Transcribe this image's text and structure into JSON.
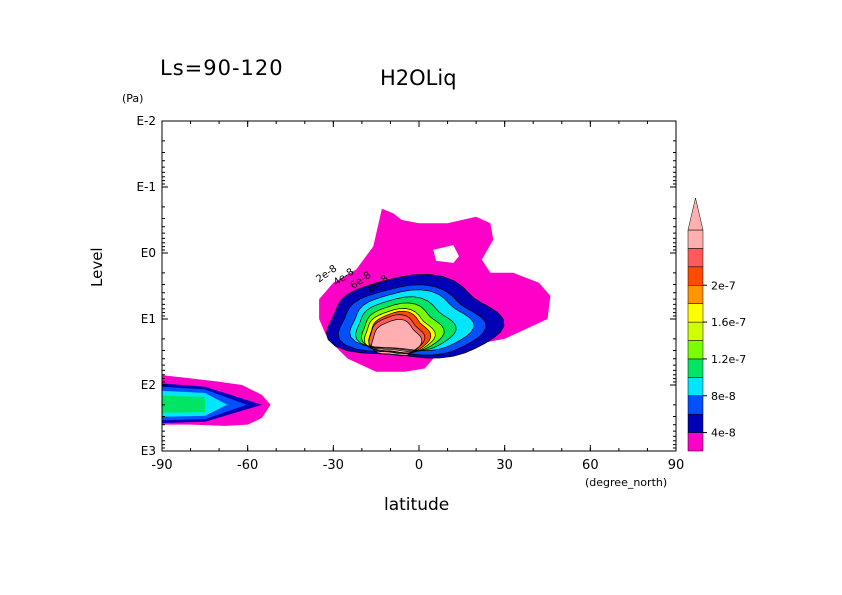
{
  "chart_data": {
    "type": "contour",
    "title": "H2OLiq",
    "subtitle": "Ls=90-120",
    "xlabel": "latitude",
    "x_unit": "(degree_north)",
    "ylabel": "Level",
    "y_unit": "(Pa)",
    "x_ticks": [
      "-90",
      "-60",
      "-30",
      "0",
      "30",
      "60",
      "90"
    ],
    "x_range": [
      -90,
      90
    ],
    "y_ticks": [
      "E-2",
      "E-1",
      "E0",
      "E1",
      "E2",
      "E3"
    ],
    "y_range_log10": [
      -2,
      3
    ],
    "y_scale": "log",
    "y_direction": "pressure increases downward",
    "colorbar": {
      "labels": [
        "4e-8",
        "8e-8",
        "1.2e-7",
        "1.6e-7",
        "2e-7"
      ],
      "levels": [
        2e-08,
        4e-08,
        6e-08,
        8e-08,
        1e-07,
        1.2e-07,
        1.4e-07,
        1.6e-07,
        1.8e-07,
        2e-07,
        2.2e-07
      ],
      "colors": [
        "#ff00c8",
        "#0000b4",
        "#0050ff",
        "#00e6ff",
        "#00e664",
        "#78ff00",
        "#d2ff00",
        "#ffff00",
        "#ff9600",
        "#ff4b00",
        "#ff5a5a",
        "#ffafaf"
      ],
      "extend": "max"
    },
    "contour_labels": [
      "2e-8",
      "4e-8",
      "6e-8",
      "8e-8"
    ],
    "regions": [
      {
        "name": "main cloud",
        "lat_range": [
          -35,
          45
        ],
        "level_log10_range": [
          -0.7,
          1.8
        ],
        "max_value": ">2.2e-7",
        "peak_lat": -8,
        "peak_level_log10": 1.3
      },
      {
        "name": "south polar cloud",
        "lat_range": [
          -90,
          -52
        ],
        "level_log10_range": [
          1.8,
          2.7
        ],
        "max_value": "1e-7",
        "peak_lat": -80,
        "peak_level_log10": 2.3
      }
    ]
  }
}
